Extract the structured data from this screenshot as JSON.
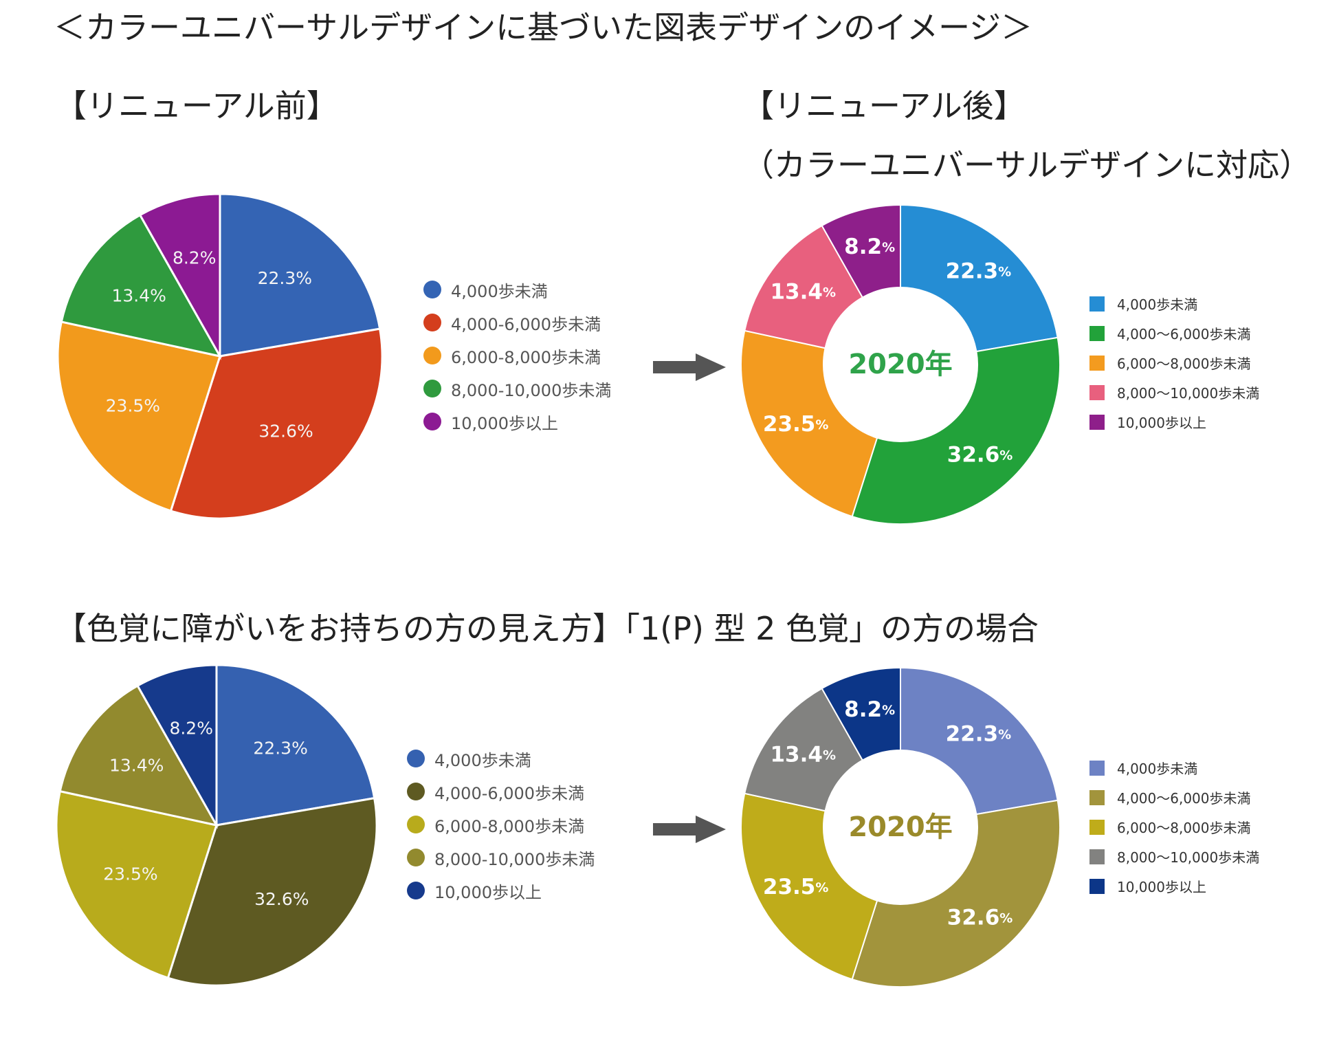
{
  "title": "＜カラーユニバーサルデザインに基づいた図表デザインのイメージ＞",
  "before_label": "【リニューアル前】",
  "after_label": "【リニューアル後】",
  "after_sublabel": "（カラーユニバーサルデザインに対応）",
  "cvd_heading": "【色覚に障がいをお持ちの方の見え方】「1(P) 型 2 色覚」の方の場合",
  "chart_data": [
    {
      "id": "before-normal",
      "type": "pie",
      "categories": [
        "4,000歩未満",
        "4,000-6,000歩未満",
        "6,000-8,000歩未満",
        "8,000-10,000歩未満",
        "10,000歩以上"
      ],
      "values": [
        22.3,
        32.6,
        23.5,
        13.4,
        8.2
      ],
      "labels": [
        "22.3%",
        "32.6%",
        "23.5%",
        "13.4%",
        "8.2%"
      ],
      "colors": [
        "#3464b4",
        "#d43e1d",
        "#f29a1c",
        "#2f9a3e",
        "#8c1a93"
      ],
      "legend": "right"
    },
    {
      "id": "after-normal",
      "type": "pie",
      "donut": true,
      "center_label": "2020年",
      "center_color": "#2fa34a",
      "categories": [
        "4,000歩未満",
        "4,000〜6,000歩未満",
        "6,000〜8,000歩未満",
        "8,000〜10,000歩未満",
        "10,000歩以上"
      ],
      "values": [
        22.3,
        32.6,
        23.5,
        13.4,
        8.2
      ],
      "labels": [
        "22.3",
        "32.6",
        "23.5",
        "13.4",
        "8.2"
      ],
      "unit": "%",
      "colors": [
        "#258dd4",
        "#22a23a",
        "#f39b1f",
        "#e8607e",
        "#8e1f8a"
      ],
      "legend": "right"
    },
    {
      "id": "before-cvd",
      "type": "pie",
      "categories": [
        "4,000歩未満",
        "4,000-6,000歩未満",
        "6,000-8,000歩未満",
        "8,000-10,000歩未満",
        "10,000歩以上"
      ],
      "values": [
        22.3,
        32.6,
        23.5,
        13.4,
        8.2
      ],
      "labels": [
        "22.3%",
        "32.6%",
        "23.5%",
        "13.4%",
        "8.2%"
      ],
      "colors": [
        "#3561b0",
        "#5e5a22",
        "#b8ab1c",
        "#928a2e",
        "#163a8c"
      ],
      "legend": "right"
    },
    {
      "id": "after-cvd",
      "type": "pie",
      "donut": true,
      "center_label": "2020年",
      "center_color": "#9a8a2a",
      "categories": [
        "4,000歩未満",
        "4,000〜6,000歩未満",
        "6,000〜8,000歩未満",
        "8,000〜10,000歩未満",
        "10,000歩以上"
      ],
      "values": [
        22.3,
        32.6,
        23.5,
        13.4,
        8.2
      ],
      "labels": [
        "22.3",
        "32.6",
        "23.5",
        "13.4",
        "8.2"
      ],
      "unit": "%",
      "colors": [
        "#6d82c4",
        "#a2943c",
        "#bfac1a",
        "#828280",
        "#0c3688"
      ],
      "legend": "right"
    }
  ]
}
